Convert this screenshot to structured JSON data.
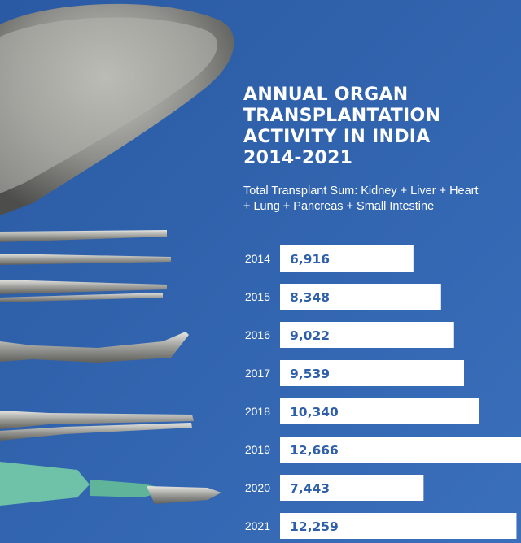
{
  "colors": {
    "background": "#2f63ad",
    "bar": "#ffffff",
    "value_text": "#2e5fa8",
    "title_text": "#ffffff"
  },
  "chart_data": {
    "type": "bar",
    "orientation": "horizontal",
    "title_lines": [
      "ANNUAL ORGAN",
      "TRANSPLANTATION",
      "ACTIVITY IN INDIA",
      "2014-2021"
    ],
    "subtitle": "Total Transplant Sum: Kidney + Liver + Heart + Lung + Pancreas + Small Intestine",
    "categories": [
      "2014",
      "2015",
      "2016",
      "2017",
      "2018",
      "2019",
      "2020",
      "2021"
    ],
    "values": [
      6916,
      8348,
      9022,
      9539,
      10340,
      12666,
      7443,
      12259
    ],
    "value_labels": [
      "6,916",
      "8,348",
      "9,022",
      "9,539",
      "10,340",
      "12,666",
      "7,443",
      "12,259"
    ],
    "xlim": [
      0,
      13000
    ]
  }
}
